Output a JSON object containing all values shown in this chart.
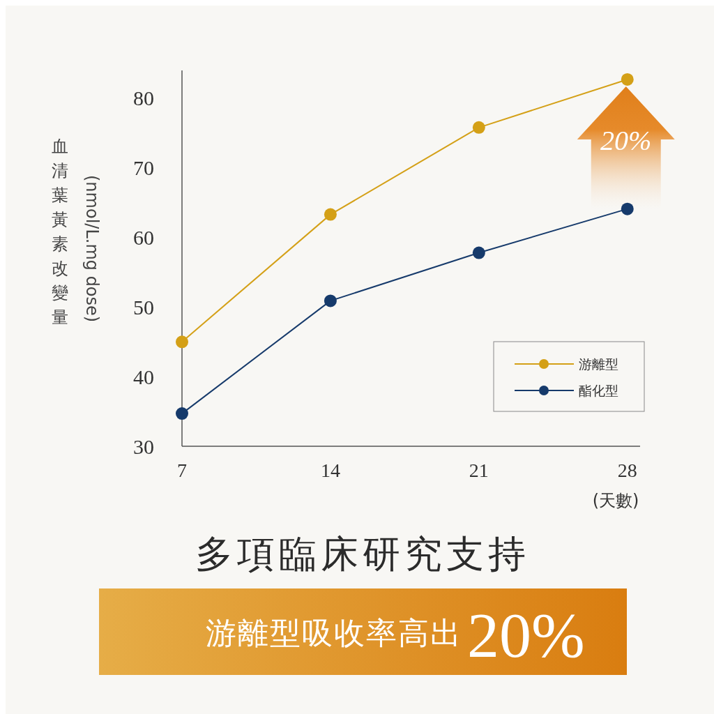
{
  "chart_data": {
    "type": "line",
    "xlabel": "(天數)",
    "ylabel": "血清葉黃素改變量",
    "x": [
      7,
      14,
      21,
      28
    ],
    "xlim": [
      7,
      28.6
    ],
    "xticks": [
      7,
      14,
      21,
      28
    ],
    "ylim": [
      30,
      84
    ],
    "yticks": [
      30,
      40,
      50,
      60,
      70,
      80
    ],
    "series": [
      {
        "name": "游離型",
        "color": "#d4a017",
        "values": [
          45,
          63.3,
          75.8,
          82.7
        ]
      },
      {
        "name": "酯化型",
        "color": "#163a6b",
        "values": [
          34.7,
          50.9,
          57.8,
          64.1
        ]
      }
    ],
    "marker": "circle",
    "line_style": "solid",
    "legend": "bottom right",
    "annotations": [
      "(nmol/L.mg dose)",
      "20%",
      "多項臨床研究支持",
      "游離型吸收率高出",
      "20%"
    ]
  }
}
